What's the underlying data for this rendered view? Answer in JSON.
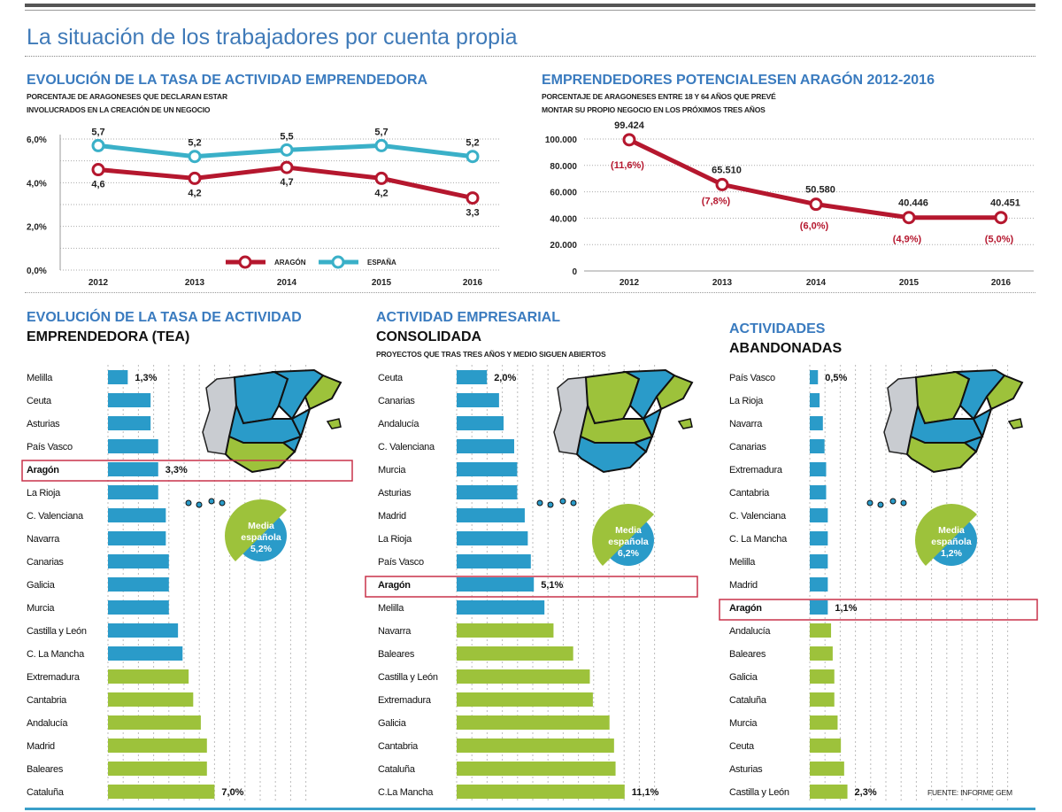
{
  "title": "La situación de los trabajadores por cuenta propia",
  "source": "FUENTE: INFORME GEM",
  "colors": {
    "blue_bar": "#2a9bc9",
    "green_bar": "#9dc23b",
    "aragon_line": "#b5172e",
    "espana_line": "#3ab0c8",
    "heading": "#3a7bbf",
    "highlight_box": "#c8324a"
  },
  "chart_data": [
    {
      "type": "line",
      "title": "EVOLUCIÓN DE LA TASA DE ACTIVIDAD EMPRENDEDORA",
      "subtitle": [
        "PORCENTAJE DE ARAGONESES QUE DECLARAN ESTAR",
        "INVOLUCRADOS EN LA CREACIÓN DE UN NEGOCIO"
      ],
      "categories": [
        "2012",
        "2013",
        "2014",
        "2015",
        "2016"
      ],
      "yticks": [
        "0,0%",
        "2,0%",
        "4,0%",
        "6,0%"
      ],
      "ylim": [
        0,
        6
      ],
      "grid": true,
      "legend_position": "bottom-center",
      "series": [
        {
          "name": "ARAGÓN",
          "values": [
            4.6,
            4.2,
            4.7,
            4.2,
            3.3
          ],
          "labels": [
            "4,6",
            "4,2",
            "4,7",
            "4,2",
            "3,3"
          ],
          "color": "#b5172e"
        },
        {
          "name": "ESPAÑA",
          "values": [
            5.7,
            5.2,
            5.5,
            5.7,
            5.2
          ],
          "labels": [
            "5,7",
            "5,2",
            "5,5",
            "5,7",
            "5,2"
          ],
          "color": "#3ab0c8"
        }
      ]
    },
    {
      "type": "line",
      "title": "EMPRENDEDORES POTENCIALESEN ARAGÓN 2012-2016",
      "subtitle": [
        "PORCENTAJE DE ARAGONESES ENTRE 18 Y 64 AÑOS  QUE PREVÉ",
        "MONTAR SU PROPIO NEGOCIO EN LOS PRÓXIMOS TRES AÑOS"
      ],
      "categories": [
        "2012",
        "2013",
        "2014",
        "2015",
        "2016"
      ],
      "yticks": [
        "0",
        "20.000",
        "40.000",
        "60.000",
        "80.000",
        "100.000"
      ],
      "ylim": [
        0,
        100000
      ],
      "grid": true,
      "series": [
        {
          "values": [
            99424,
            65510,
            50580,
            40446,
            40451
          ],
          "labels": [
            "99.424",
            "65.510",
            "50.580",
            "40.446",
            "40.451"
          ],
          "pct_labels": [
            "(11,6%)",
            "(7,8%)",
            "(6,0%)",
            "(4,9%)",
            "(5,0%)"
          ],
          "color": "#b5172e"
        }
      ]
    },
    {
      "type": "bar",
      "orientation": "horizontal",
      "title": [
        "EVOLUCIÓN DE LA TASA DE ACTIVIDAD",
        "EMPRENDEDORA (TEA)"
      ],
      "unit": "%",
      "average": {
        "lines": [
          "Media",
          "española",
          "5,2%"
        ],
        "value": 5.2
      },
      "highlight": "Aragón",
      "categories": [
        "Melilla",
        "Ceuta",
        "Asturias",
        "País Vasco",
        "Aragón",
        "La Rioja",
        "C. Valenciana",
        "Navarra",
        "Canarias",
        "Galicia",
        "Murcia",
        "Castilla y León",
        "C. La Mancha",
        "Extremadura",
        "Cantabria",
        "Andalucía",
        "Madrid",
        "Baleares",
        "Cataluña"
      ],
      "values": [
        1.3,
        2.8,
        2.8,
        3.3,
        3.3,
        3.3,
        3.8,
        3.8,
        4.0,
        4.0,
        4.0,
        4.6,
        4.9,
        5.3,
        5.6,
        6.1,
        6.5,
        6.5,
        7.0
      ],
      "groups": [
        "below",
        "below",
        "below",
        "below",
        "below",
        "below",
        "below",
        "below",
        "below",
        "below",
        "below",
        "below",
        "below",
        "above",
        "above",
        "above",
        "above",
        "above",
        "above"
      ],
      "data_labels": {
        "Melilla": "1,3%",
        "Aragón": "3,3%",
        "Cataluña": "7,0%"
      }
    },
    {
      "type": "bar",
      "orientation": "horizontal",
      "title": [
        "ACTIVIDAD EMPRESARIAL",
        "CONSOLIDADA"
      ],
      "subtitle": "PROYECTOS QUE TRAS TRES AÑOS Y MEDIO SIGUEN ABIERTOS",
      "unit": "%",
      "average": {
        "lines": [
          "Media",
          "española",
          "6,2%"
        ],
        "value": 6.2
      },
      "highlight": "Aragón",
      "categories": [
        "Ceuta",
        "Canarias",
        "Andalucía",
        "C. Valenciana",
        "Murcia",
        "Asturias",
        "Madrid",
        "La Rioja",
        "País Vasco",
        "Aragón",
        "Melilla",
        "Navarra",
        "Baleares",
        "Castilla y León",
        "Extremadura",
        "Galicia",
        "Cantabria",
        "Cataluña",
        "C.La Mancha"
      ],
      "values": [
        2.0,
        2.8,
        3.1,
        3.8,
        4.0,
        4.0,
        4.5,
        4.7,
        4.9,
        5.1,
        5.8,
        6.4,
        7.7,
        8.8,
        9.0,
        10.1,
        10.4,
        10.5,
        11.1
      ],
      "groups": [
        "below",
        "below",
        "below",
        "below",
        "below",
        "below",
        "below",
        "below",
        "below",
        "below",
        "below",
        "above",
        "above",
        "above",
        "above",
        "above",
        "above",
        "above",
        "above"
      ],
      "data_labels": {
        "Ceuta": "2,0%",
        "Aragón": "5,1%",
        "C.La Mancha": "11,1%"
      }
    },
    {
      "type": "bar",
      "orientation": "horizontal",
      "title": [
        "ACTIVIDADES",
        "ABANDONADAS"
      ],
      "unit": "%",
      "average": {
        "lines": [
          "Media",
          "española",
          "1,2%"
        ],
        "value": 1.2
      },
      "highlight": "Aragón",
      "categories": [
        "País Vasco",
        "La Rioja",
        "Navarra",
        "Canarias",
        "Extremadura",
        "Cantabria",
        "C. Valenciana",
        "C. La Mancha",
        "Melilla",
        "Madrid",
        "Aragón",
        "Andalucía",
        "Baleares",
        "Galicia",
        "Cataluña",
        "Murcia",
        "Ceuta",
        "Asturias",
        "Castilla y León"
      ],
      "values": [
        0.5,
        0.6,
        0.8,
        0.9,
        1.0,
        1.0,
        1.1,
        1.1,
        1.1,
        1.1,
        1.1,
        1.3,
        1.4,
        1.5,
        1.5,
        1.7,
        1.9,
        2.1,
        2.3
      ],
      "groups": [
        "below",
        "below",
        "below",
        "below",
        "below",
        "below",
        "below",
        "below",
        "below",
        "below",
        "below",
        "above",
        "above",
        "above",
        "above",
        "above",
        "above",
        "above",
        "above"
      ],
      "data_labels": {
        "País Vasco": "0,5%",
        "Aragón": "1,1%",
        "Castilla y León": "2,3%"
      }
    }
  ]
}
